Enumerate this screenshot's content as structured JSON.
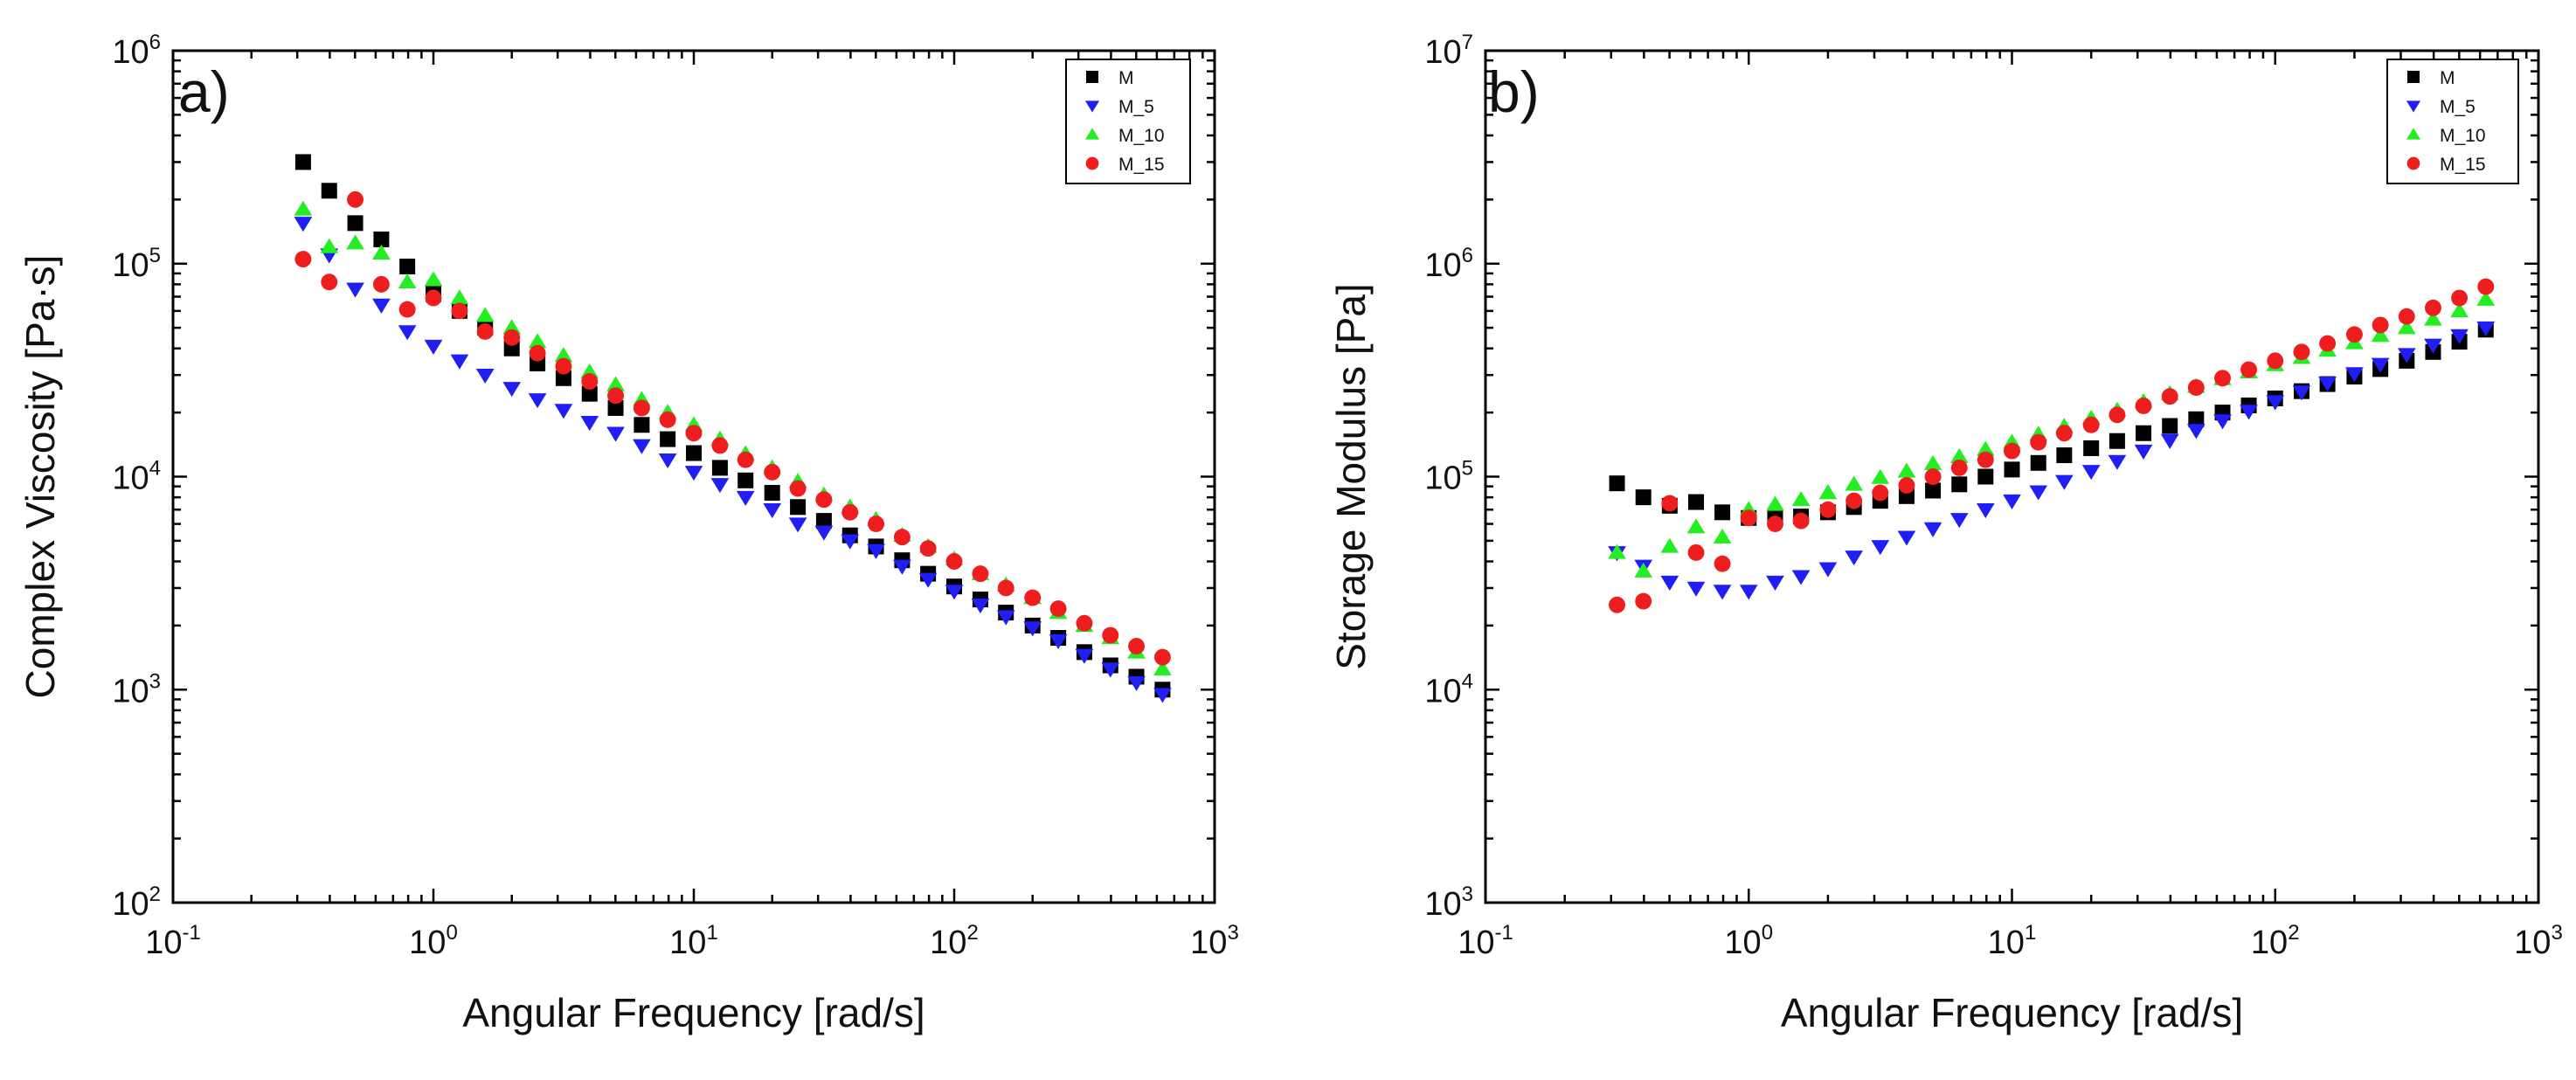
{
  "chart_data": [
    {
      "type": "scatter",
      "panel": "a)",
      "xlabel": "Angular Frequency [rad/s]",
      "ylabel": "Complex Viscosity [Pa·s]",
      "xscale": "log",
      "yscale": "log",
      "xlim": [
        0.1,
        1000
      ],
      "ylim": [
        100,
        1000000
      ],
      "x_ticks": [
        {
          "base": "10",
          "exp": "-1",
          "value": 0.1
        },
        {
          "base": "10",
          "exp": "0",
          "value": 1
        },
        {
          "base": "10",
          "exp": "1",
          "value": 10
        },
        {
          "base": "10",
          "exp": "2",
          "value": 100
        },
        {
          "base": "10",
          "exp": "3",
          "value": 1000
        }
      ],
      "y_ticks": [
        {
          "base": "10",
          "exp": "2",
          "value": 100
        },
        {
          "base": "10",
          "exp": "3",
          "value": 1000
        },
        {
          "base": "10",
          "exp": "4",
          "value": 10000
        },
        {
          "base": "10",
          "exp": "5",
          "value": 100000
        },
        {
          "base": "10",
          "exp": "6",
          "value": 1000000
        }
      ],
      "grid": false,
      "legend_position": "top-right",
      "x": [
        0.316,
        0.398,
        0.501,
        0.631,
        0.794,
        1.0,
        1.26,
        1.58,
        2.0,
        2.51,
        3.16,
        3.98,
        5.01,
        6.31,
        7.94,
        10.0,
        12.6,
        15.8,
        20.0,
        25.1,
        31.6,
        39.8,
        50.1,
        63.1,
        79.4,
        100,
        126,
        158,
        200,
        251,
        316,
        398,
        501,
        631
      ],
      "series": [
        {
          "name": "M",
          "color": "#000000",
          "marker": "square",
          "values": [
            300000,
            220000,
            155000,
            130000,
            97000,
            72000,
            60000,
            50000,
            40000,
            34000,
            29000,
            24500,
            21000,
            17500,
            15000,
            12900,
            11000,
            9600,
            8400,
            7200,
            6200,
            5300,
            4700,
            4050,
            3500,
            3050,
            2650,
            2300,
            2000,
            1750,
            1500,
            1300,
            1150,
            1000
          ]
        },
        {
          "name": "M_5",
          "color": "#1f1ff5",
          "marker": "triangle-down",
          "values": [
            155000,
            110000,
            76000,
            64000,
            48000,
            41000,
            35000,
            30000,
            26000,
            23000,
            20500,
            18000,
            16000,
            14000,
            12000,
            10500,
            9200,
            8000,
            7000,
            6000,
            5500,
            5000,
            4500,
            3800,
            3300,
            2900,
            2500,
            2200,
            1950,
            1700,
            1450,
            1250,
            1080,
            950
          ]
        },
        {
          "name": "M_10",
          "color": "#22ee22",
          "marker": "triangle-up",
          "values": [
            180000,
            120000,
            125000,
            112000,
            82000,
            84000,
            69000,
            57000,
            50000,
            43000,
            37000,
            31000,
            27000,
            23000,
            20000,
            17500,
            15000,
            12800,
            11000,
            9500,
            8200,
            7200,
            6300,
            5300,
            4700,
            4100,
            3500,
            3100,
            2700,
            2300,
            2000,
            1750,
            1500,
            1250
          ]
        },
        {
          "name": "M_15",
          "color": "#ee1e1e",
          "marker": "circle",
          "values": [
            105000,
            82000,
            200000,
            80000,
            61000,
            69000,
            60000,
            48000,
            45000,
            38000,
            33000,
            28000,
            24000,
            21000,
            18500,
            16000,
            14000,
            12000,
            10500,
            8800,
            7800,
            6800,
            6000,
            5200,
            4600,
            4000,
            3500,
            3000,
            2700,
            2400,
            2050,
            1800,
            1600,
            1420
          ]
        }
      ]
    },
    {
      "type": "scatter",
      "panel": "b)",
      "xlabel": "Angular Frequency [rad/s]",
      "ylabel": "Storage Modulus [Pa]",
      "xscale": "log",
      "yscale": "log",
      "xlim": [
        0.1,
        1000
      ],
      "ylim": [
        1000,
        10000000
      ],
      "x_ticks": [
        {
          "base": "10",
          "exp": "-1",
          "value": 0.1
        },
        {
          "base": "10",
          "exp": "0",
          "value": 1
        },
        {
          "base": "10",
          "exp": "1",
          "value": 10
        },
        {
          "base": "10",
          "exp": "2",
          "value": 100
        },
        {
          "base": "10",
          "exp": "3",
          "value": 1000
        }
      ],
      "y_ticks": [
        {
          "base": "10",
          "exp": "3",
          "value": 1000
        },
        {
          "base": "10",
          "exp": "4",
          "value": 10000
        },
        {
          "base": "10",
          "exp": "5",
          "value": 100000
        },
        {
          "base": "10",
          "exp": "6",
          "value": 1000000
        },
        {
          "base": "10",
          "exp": "7",
          "value": 10000000
        }
      ],
      "grid": false,
      "legend_position": "top-right",
      "x": [
        0.316,
        0.398,
        0.501,
        0.631,
        0.794,
        1.0,
        1.26,
        1.58,
        2.0,
        2.51,
        3.16,
        3.98,
        5.01,
        6.31,
        7.94,
        10.0,
        12.6,
        15.8,
        20.0,
        25.1,
        31.6,
        39.8,
        50.1,
        63.1,
        79.4,
        100,
        126,
        158,
        200,
        251,
        316,
        398,
        501,
        631
      ],
      "series": [
        {
          "name": "M",
          "color": "#000000",
          "marker": "square",
          "values": [
            93000,
            80000,
            73000,
            76000,
            68000,
            64000,
            64000,
            65000,
            68000,
            72000,
            77000,
            81000,
            86000,
            92000,
            100000,
            108000,
            116000,
            126000,
            136000,
            147000,
            160000,
            173000,
            186000,
            200000,
            216000,
            233000,
            252000,
            272000,
            295000,
            320000,
            350000,
            385000,
            430000,
            490000
          ]
        },
        {
          "name": "M_5",
          "color": "#1f1ff5",
          "marker": "triangle-down",
          "values": [
            44000,
            38000,
            32000,
            30000,
            29000,
            29000,
            32000,
            34000,
            37000,
            42000,
            47000,
            52000,
            57000,
            63000,
            70000,
            77000,
            85000,
            95000,
            106000,
            118000,
            132000,
            148000,
            165000,
            183000,
            203000,
            225000,
            250000,
            275000,
            305000,
            337000,
            375000,
            415000,
            460000,
            500000
          ]
        },
        {
          "name": "M_10",
          "color": "#22ee22",
          "marker": "triangle-up",
          "values": [
            44000,
            36000,
            47000,
            58000,
            52000,
            70000,
            74000,
            78000,
            84000,
            92000,
            99000,
            106000,
            115000,
            124000,
            134000,
            145000,
            158000,
            172000,
            188000,
            205000,
            225000,
            245000,
            265000,
            288000,
            310000,
            335000,
            362000,
            392000,
            425000,
            460000,
            500000,
            548000,
            600000,
            680000
          ]
        },
        {
          "name": "M_15",
          "color": "#ee1e1e",
          "marker": "circle",
          "values": [
            25000,
            26000,
            75000,
            44000,
            39000,
            64000,
            60000,
            62000,
            70000,
            77000,
            84000,
            91000,
            100000,
            110000,
            120000,
            132000,
            145000,
            160000,
            175000,
            195000,
            215000,
            238000,
            262000,
            290000,
            318000,
            350000,
            385000,
            422000,
            465000,
            515000,
            565000,
            620000,
            690000,
            780000
          ]
        }
      ]
    }
  ]
}
